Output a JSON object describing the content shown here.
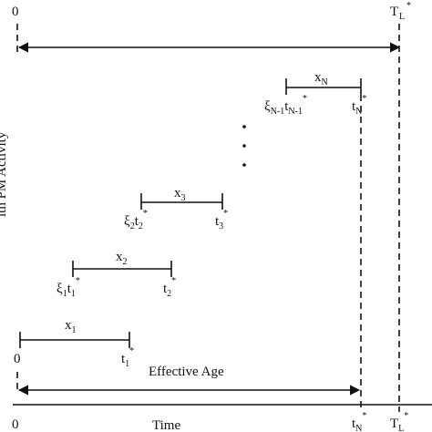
{
  "labels": {
    "top_zero": "0",
    "lifetime_T": "T",
    "lifetime_sub": "L",
    "star": "*",
    "effective_age": "Effective Age",
    "time": "Time",
    "y_axis": "ith PM Activity",
    "bottom_zero": "0",
    "row1_zero": "0",
    "t1": "t",
    "t1_sub": "1",
    "x1": "x",
    "x1_sub": "1",
    "xi1": "ξ",
    "xi1_sub": "1",
    "t1s": "t",
    "t1s_sub": "1",
    "t2": "t",
    "t2_sub": "2",
    "x2": "x",
    "x2_sub": "2",
    "xi2": "ξ",
    "xi2_sub": "2",
    "t2s": "t",
    "t2s_sub": "2",
    "t3": "t",
    "t3_sub": "3",
    "x3": "x",
    "x3_sub": "3",
    "xiN1": "ξ",
    "xiN1_sub": "N-1",
    "tN1": "t",
    "tN1_sub": "N-1",
    "tN": "t",
    "tN_sub": "N",
    "xN": "x",
    "xN_sub": "N",
    "tN_bottom": "t",
    "tN_bottom_sub": "N",
    "TL_bottom": "T",
    "TL_bottom_sub": "L"
  }
}
